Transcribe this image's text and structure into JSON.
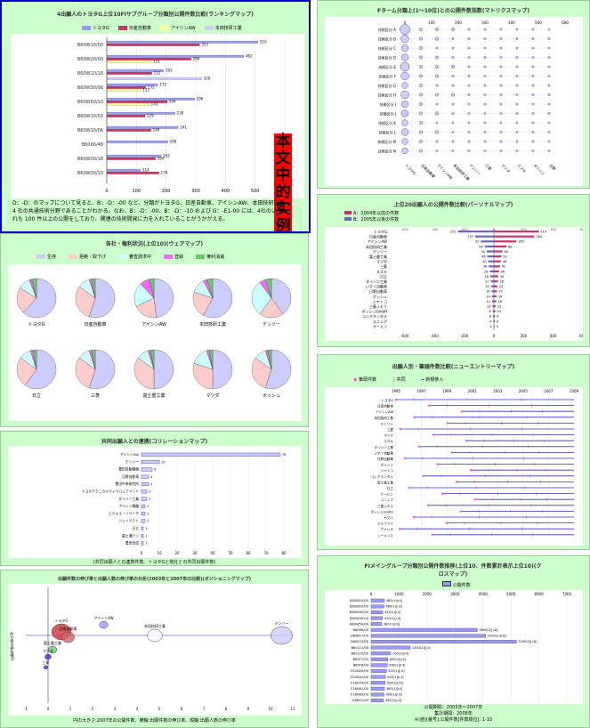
{
  "panel1": {
    "title": "4出願人のトヨタG上位10FIサブグループ分類別公開件数比較(ランキングマップ)",
    "legend": [
      {
        "name": "トヨタG",
        "color": "#9999ff"
      },
      {
        "name": "日産自動車",
        "color": "#cc3366"
      },
      {
        "name": "アイシンAW",
        "color": "#ffff99"
      },
      {
        "name": "本田技研工業",
        "color": "#ccccff"
      }
    ],
    "red_label": "本文中的实例",
    "body_text": "D：-D：のマップについて見ると、B：-D：-00 など、分類がトヨタG、日産自動車、アイシンAW、本田技研工業 4 社の共通技術分野であることがわかる。なお、B：-D：-00、B：-D：-10 および G：-E1-00 には、4社のいずれも 100 件以上の公開をしており、関連の技術開発に力を入れていることがうかがえる。",
    "rows": [
      {
        "label": "B60W10/00",
        "values": [
          510,
          313,
          0,
          0
        ]
      },
      {
        "label": "B60W20/00",
        "values": [
          462,
          284,
          151,
          0
        ]
      },
      {
        "label": "B60W10/18",
        "values": [
          192,
          152,
          0,
          320
        ]
      },
      {
        "label": "B60W30/08",
        "values": [
          172,
          131,
          115,
          0
        ]
      },
      {
        "label": "B60W50/10",
        "values": [
          296,
          204,
          143,
          0
        ]
      },
      {
        "label": "B60W10/02",
        "values": [
          230,
          129,
          0,
          0
        ]
      },
      {
        "label": "B60W10/06",
        "values": [
          241,
          149,
          0,
          0
        ]
      },
      {
        "label": "B60K6/48",
        "values": [
          206,
          0,
          0,
          0
        ]
      },
      {
        "label": "B60W30/18",
        "values": [
          183,
          164,
          0,
          0
        ]
      },
      {
        "label": "B60W30/10",
        "values": [
          114,
          176,
          0,
          0
        ]
      }
    ]
  },
  "panel2": {
    "title": "Fターム分類上(1～10位)との公開件数指数(マトリクスマップ)",
    "rows": [
      "技術区分 A",
      "技術区分 B",
      "技術区分 C",
      "技術区分 D",
      "技術区分 E",
      "技術区分 F",
      "技術区分 G",
      "技術区分 H",
      "技術区分 I",
      "技術区分 J",
      "技術区分 K",
      "技術区分 L",
      "技術区分 M",
      "技術区分 N"
    ],
    "cols": [
      "トヨタG",
      "日産自動車",
      "アイシンAW",
      "本田技研工業",
      "デンソー",
      "三菱",
      "マツダ",
      "スズキ",
      "ダイハツ",
      "日野"
    ],
    "sizes": [
      [
        9,
        2,
        2,
        2,
        1,
        1,
        1,
        1,
        1,
        1
      ],
      [
        7,
        2,
        2,
        1,
        1,
        1,
        1,
        1,
        1,
        1
      ],
      [
        6,
        2,
        1,
        1,
        1,
        1,
        1,
        1,
        1,
        1
      ],
      [
        6,
        2,
        2,
        1,
        1,
        1,
        1,
        1,
        1,
        1
      ],
      [
        8,
        2,
        2,
        2,
        1,
        1,
        1,
        1,
        1,
        1
      ],
      [
        7,
        2,
        2,
        1,
        1,
        1,
        1,
        1,
        1,
        1
      ],
      [
        5,
        2,
        1,
        1,
        1,
        1,
        1,
        1,
        1,
        1
      ],
      [
        7,
        2,
        2,
        2,
        1,
        1,
        1,
        1,
        1,
        1
      ],
      [
        6,
        2,
        1,
        1,
        1,
        1,
        1,
        1,
        1,
        1
      ],
      [
        6,
        2,
        2,
        1,
        1,
        1,
        1,
        1,
        1,
        1
      ],
      [
        5,
        2,
        1,
        1,
        1,
        1,
        1,
        1,
        1,
        1
      ],
      [
        6,
        2,
        2,
        1,
        1,
        1,
        1,
        1,
        1,
        1
      ],
      [
        5,
        2,
        1,
        1,
        1,
        1,
        1,
        1,
        1,
        1
      ],
      [
        5,
        2,
        1,
        1,
        1,
        1,
        1,
        1,
        1,
        1
      ]
    ],
    "axis_ticks": [
      "0",
      "100",
      "200",
      "300",
      "400",
      "500",
      "600"
    ]
  },
  "panel3": {
    "title": "上位20出願人の公開件数比較(パーソナルマップ)",
    "legend": [
      "A：2004年以前の件数",
      "B：2005年以後の件数"
    ],
    "rows": [
      {
        "label": "トヨタG",
        "a": -252,
        "b": 314
      },
      {
        "label": "日産自動車",
        "a": -132,
        "b": 284
      },
      {
        "label": "アイシンAW",
        "a": -92,
        "b": 156
      },
      {
        "label": "本田技研工業",
        "a": -64,
        "b": 88
      },
      {
        "label": "デンソー",
        "a": -50,
        "b": 60
      },
      {
        "label": "富士重工業",
        "a": -46,
        "b": 52
      },
      {
        "label": "マツダ",
        "a": -40,
        "b": 48
      },
      {
        "label": "三菱",
        "a": -36,
        "b": 42
      },
      {
        "label": "スズキ",
        "a": -28,
        "b": 36
      },
      {
        "label": "日立",
        "a": -26,
        "b": 30
      },
      {
        "label": "ダイハツ工業",
        "a": -22,
        "b": 28
      },
      {
        "label": "いすゞ自動車",
        "a": -20,
        "b": 24
      },
      {
        "label": "日野自動車",
        "a": -16,
        "b": 22
      },
      {
        "label": "ボッシュ",
        "a": -14,
        "b": 18
      },
      {
        "label": "ジヤトコ",
        "a": -12,
        "b": 16
      },
      {
        "label": "三菱ふそう",
        "a": -10,
        "b": 12
      },
      {
        "label": "ボッシュGmbH",
        "a": -8,
        "b": 10
      },
      {
        "label": "コンチネンタル",
        "a": -6,
        "b": 8
      },
      {
        "label": "ユニシア",
        "a": -4,
        "b": 6
      },
      {
        "label": "ケーヒン",
        "a": -2,
        "b": 4
      }
    ],
    "ticks": [
      "-600",
      "-400",
      "-200",
      "0",
      "200",
      "400",
      "600"
    ]
  },
  "panel4": {
    "title": "各社・権利状況(上位10)(ウェアマップ)",
    "legend": [
      {
        "name": "生存",
        "color": "#ccccff"
      },
      {
        "name": "拒絶・取下げ",
        "color": "#ffcccc"
      },
      {
        "name": "審査請求中",
        "color": "#ccffff"
      },
      {
        "name": "登録",
        "color": "#ff66ff"
      },
      {
        "name": "権利消滅",
        "color": "#66cc66"
      }
    ],
    "pies": [
      {
        "name": "トヨタG",
        "shares": [
          0.62,
          0.22,
          0.1,
          0.02,
          0.04
        ]
      },
      {
        "name": "日産自動車",
        "shares": [
          0.55,
          0.3,
          0.1,
          0.02,
          0.03
        ]
      },
      {
        "name": "アイシンAW",
        "shares": [
          0.48,
          0.2,
          0.2,
          0.08,
          0.04
        ]
      },
      {
        "name": "本田技研工業",
        "shares": [
          0.58,
          0.22,
          0.12,
          0.03,
          0.05
        ]
      },
      {
        "name": "デンソー",
        "shares": [
          0.4,
          0.2,
          0.3,
          0.05,
          0.05
        ]
      },
      {
        "name": "日立",
        "shares": [
          0.6,
          0.25,
          0.1,
          0.02,
          0.03
        ]
      },
      {
        "name": "三菱",
        "shares": [
          0.55,
          0.3,
          0.1,
          0.02,
          0.03
        ]
      },
      {
        "name": "富士重工業",
        "shares": [
          0.5,
          0.35,
          0.1,
          0.02,
          0.03
        ]
      },
      {
        "name": "マツダ",
        "shares": [
          0.5,
          0.3,
          0.15,
          0.02,
          0.03
        ]
      },
      {
        "name": "ボッシュ",
        "shares": [
          0.55,
          0.3,
          0.1,
          0.02,
          0.03
        ]
      }
    ]
  },
  "panel5": {
    "title": "出願人別・筆頭件数比較(ニューエントリーマップ)",
    "legend": [
      "筆頭件数",
      "共同",
      "新規参入"
    ],
    "top_ticks": [
      "1995",
      "1997",
      "1999",
      "2001",
      "2003",
      "2005",
      "2007",
      "2009"
    ],
    "rows": [
      "トヨタG",
      "日産自動車",
      "アイシンAW",
      "本田技研工業",
      "デンソー",
      "三菱",
      "マツダ",
      "スズキ",
      "ダイハツ工業",
      "いすゞ自動車",
      "日野自動車",
      "ボッシュ",
      "ジヤトコ",
      "コンチネンタル",
      "富士重工業",
      "日立",
      "ケーヒン",
      "ユニシア",
      "三菱ふそう",
      "ボッシュGmbH",
      "ヤマハ",
      "デルファイ",
      "ヴァレオ",
      "シーメンス"
    ]
  },
  "panel6": {
    "title": "共同出願人との連携(コリレーションマップ)",
    "rows": [
      {
        "label": "アイシンAW",
        "value": 78
      },
      {
        "label": "デンソー",
        "value": 10
      },
      {
        "label": "豊田自動織機",
        "value": 6
      },
      {
        "label": "日野自動車",
        "value": 4
      },
      {
        "label": "豊田中央研究所",
        "value": 4
      },
      {
        "label": "トヨタテクニカルディベロップメント",
        "value": 3
      },
      {
        "label": "ダイハツ工業",
        "value": 3
      },
      {
        "label": "アイシン精機",
        "value": 2
      },
      {
        "label": "エクォス・リサーチ",
        "value": 2
      },
      {
        "label": "ジェイテクト",
        "value": 2
      },
      {
        "label": "日立",
        "value": 1
      },
      {
        "label": "富士通テン",
        "value": 1
      },
      {
        "label": "豊田合成",
        "value": 1
      }
    ],
    "ticks": [
      "0",
      "10",
      "20",
      "30",
      "40",
      "50",
      "60",
      "70",
      "80"
    ],
    "footnote": "(共同出願人との連携件数。トヨタGと他社との共同出願件数)"
  },
  "panel7": {
    "title": "FIメイングループ分類別公開件数推移(上位10、件数累計表示上位10)(クロスマップ)",
    "legend": [
      "公開件数"
    ],
    "ticks": [
      "0",
      "1000",
      "2000",
      "3000",
      "4000",
      "5000",
      "6000",
      "7000"
    ],
    "rows": [
      {
        "label": "B60W10/00",
        "value": 480,
        "text": "480(1)[ⅰ-ⅱ]"
      },
      {
        "label": "B60W20/00",
        "value": 460,
        "text": "460(1)[ⅰ-ⅱ]"
      },
      {
        "label": "B60W30/00",
        "value": 420,
        "text": "420(1)[ⅰ-ⅱ]"
      },
      {
        "label": "B60W40/00",
        "value": 410,
        "text": "410(1)[ⅰ-ⅱ]"
      },
      {
        "label": "B60W50/00",
        "value": 380,
        "text": "380(1)[ⅰ-ⅱ]"
      },
      {
        "label": "B60K6/00",
        "value": 3800,
        "text": "3800(2)[ⅰ-ⅲ]"
      },
      {
        "label": "B60K17/00",
        "value": 4100,
        "text": "4100(2)[ⅰ-ⅲ]"
      },
      {
        "label": "B60K23/00",
        "value": 5200,
        "text": "5200(2)[ⅰ-ⅲ]"
      },
      {
        "label": "B60L11/00",
        "value": 1400,
        "text": "1400(2)[ⅰ-ⅱ]"
      },
      {
        "label": "B60L15/00",
        "value": 700,
        "text": "700(1)[ⅰ-ⅱ]"
      },
      {
        "label": "B60T7/00",
        "value": 600,
        "text": "600(1)[ⅰ-ⅱ]"
      },
      {
        "label": "B60T8/00",
        "value": 580,
        "text": "580(1)[ⅰ-ⅱ]"
      },
      {
        "label": "F02D29/00",
        "value": 550,
        "text": "550(1)[ⅰ-ⅱ]"
      },
      {
        "label": "F02D41/00",
        "value": 520,
        "text": "520(1)[ⅰ-ⅱ]"
      },
      {
        "label": "F16H59/00",
        "value": 500,
        "text": "500(1)[ⅰ-ⅱ]"
      },
      {
        "label": "F16H61/00",
        "value": 480,
        "text": "480(1)[ⅰ-ⅱ]"
      },
      {
        "label": "F16H63/00",
        "value": 460,
        "text": "460(1)[ⅰ-ⅱ]"
      },
      {
        "label": "G08G1/00",
        "value": 440,
        "text": "440(1)[ⅰ-ⅱ]"
      }
    ],
    "footer": [
      "公開期間：2003年～2007年",
      "集計期間：2008年",
      "※(値)[番号]:公開件数[件数順位]: 1-10"
    ]
  },
  "panel8": {
    "title": "出願件数の伸び率と出願人数の伸び率の分析(2003年と2007年の比較)(ポジショニングマップ)",
    "x_ticks": [
      "-1",
      "0",
      "1",
      "2",
      "3",
      "4",
      "5",
      "6",
      "7",
      "8",
      "9",
      "10",
      "11"
    ],
    "y_label": "出願件数の伸び率",
    "bubbles": [
      {
        "label": "トヨタG",
        "x": 0.6,
        "y": 0.1,
        "r": 9,
        "color": "#cc3333"
      },
      {
        "label": "日産自動車",
        "x": 0.9,
        "y": -0.05,
        "r": 6,
        "color": "#cc6666"
      },
      {
        "label": "アイシンAW",
        "x": 2.5,
        "y": 0.3,
        "r": 4,
        "color": "#9999ff"
      },
      {
        "label": "本田技研工業",
        "x": 4.8,
        "y": 0.0,
        "r": 7,
        "color": "#ffffff"
      },
      {
        "label": "デンソー",
        "x": 10.5,
        "y": 0.0,
        "r": 10,
        "color": "#ccccff"
      },
      {
        "label": "富士重工業",
        "x": 0.2,
        "y": -0.4,
        "r": 4,
        "color": "#66cc66"
      },
      {
        "label": "マツダ",
        "x": 0.0,
        "y": -0.6,
        "r": 3,
        "color": "#3333cc"
      },
      {
        "label": "三菱",
        "x": -0.1,
        "y": -0.9,
        "r": 2,
        "color": "#3333cc"
      }
    ],
    "footnote": "円の大きさ:2007年の公開件数、横軸:出願件数の伸び率、縦軸:出願人数の伸び率"
  }
}
